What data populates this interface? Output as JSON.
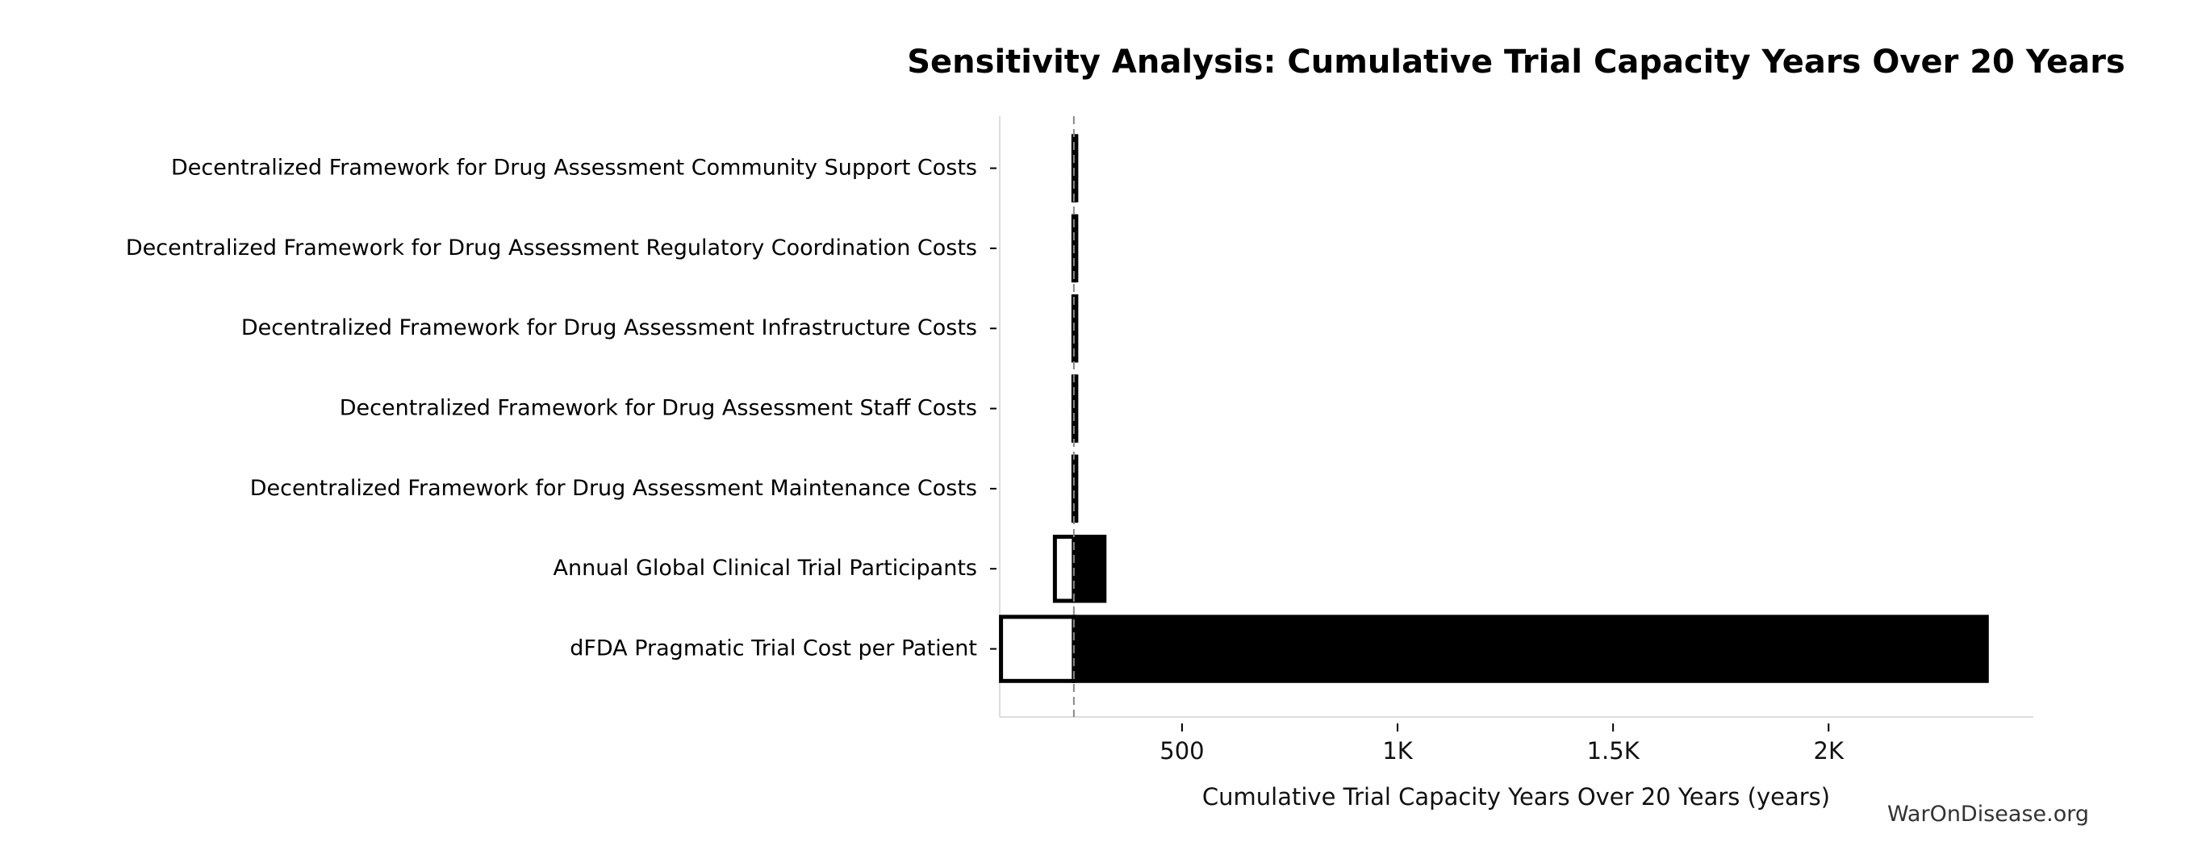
{
  "chart_data": {
    "type": "bar",
    "orientation": "horizontal",
    "subtype": "tornado",
    "title": "Sensitivity Analysis: Cumulative Trial Capacity Years Over 20 Years",
    "xlabel": "Cumulative Trial Capacity Years Over 20 Years (years)",
    "ylabel": "",
    "xlim": [
      77,
      2475
    ],
    "baseline": 249,
    "xticks": [
      500,
      1000,
      1500,
      2000
    ],
    "xtick_labels": [
      "500",
      "1K",
      "1.5K",
      "2K"
    ],
    "grid": false,
    "categories": [
      "Decentralized Framework for Drug Assessment Community Support Costs",
      "Decentralized Framework for Drug Assessment Regulatory Coordination Costs",
      "Decentralized Framework for Drug Assessment Infrastructure Costs",
      "Decentralized Framework for Drug Assessment Staff Costs",
      "Decentralized Framework for Drug Assessment Maintenance Costs",
      "Annual Global Clinical Trial Participants",
      "dFDA Pragmatic Trial Cost per Patient"
    ],
    "low_values": [
      248,
      248,
      248,
      248,
      248,
      205,
      80
    ],
    "high_values": [
      250,
      250,
      250,
      250,
      251,
      320,
      2367
    ],
    "colors": {
      "low": "#ffffff",
      "high": "#000000",
      "baseline": "#888888",
      "spine": "#dddddd"
    }
  },
  "watermark": "WarOnDisease.org"
}
